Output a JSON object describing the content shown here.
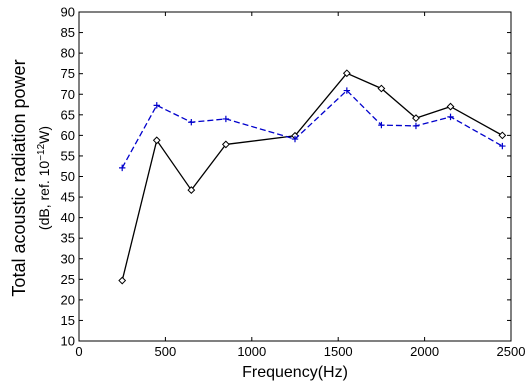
{
  "chart_data": {
    "type": "line",
    "xlabel": "Frequency(Hz)",
    "ylabel": "Total acoustic radiation power",
    "ylabel_sub_prefix": "(dB, ref. 10",
    "ylabel_sub_exponent": "−12",
    "ylabel_sub_suffix": "W)",
    "xlim": [
      0,
      2500
    ],
    "ylim": [
      10,
      90
    ],
    "xticks": [
      0,
      500,
      1000,
      1500,
      2000,
      2500
    ],
    "yticks": [
      10,
      15,
      20,
      25,
      30,
      35,
      40,
      45,
      50,
      55,
      60,
      65,
      70,
      75,
      80,
      85,
      90
    ],
    "grid": false,
    "series": [
      {
        "x": [
          250,
          450,
          650,
          850,
          1250,
          1550,
          1750,
          1950,
          2150,
          2450
        ],
        "y": [
          24.7,
          58.8,
          46.7,
          57.8,
          59.9,
          75.1,
          71.4,
          64.2,
          67.0,
          60.0
        ],
        "color": "#000000",
        "line_style": "solid",
        "marker": "diamond"
      },
      {
        "x": [
          250,
          450,
          650,
          850,
          1250,
          1550,
          1750,
          1950,
          2150,
          2450
        ],
        "y": [
          52.1,
          67.3,
          63.2,
          64.0,
          59.1,
          70.9,
          62.5,
          62.3,
          64.5,
          57.4
        ],
        "color": "#0000cc",
        "line_style": "dashed",
        "marker": "plus"
      }
    ]
  }
}
